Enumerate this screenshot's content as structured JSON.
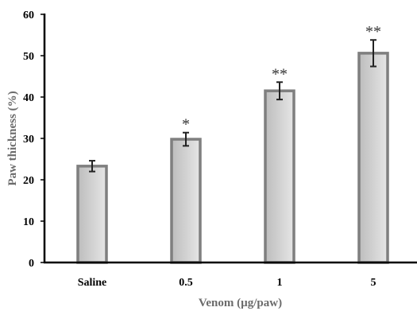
{
  "chart_data": {
    "type": "bar",
    "categories": [
      "Saline",
      "0.5",
      "1",
      "5"
    ],
    "values": [
      23.3,
      29.8,
      41.5,
      50.6
    ],
    "errors": [
      1.3,
      1.6,
      2.1,
      3.2
    ],
    "significance": [
      "",
      "*",
      "**",
      "**"
    ],
    "xlabel": "Venom (µg/paw)",
    "ylabel": "Paw thickness (%)",
    "ylim": [
      0,
      60
    ],
    "yticks": [
      0,
      10,
      20,
      30,
      40,
      50,
      60
    ],
    "grid": false,
    "legend": "none"
  },
  "colors": {
    "bar_fill_light": "#e6e6e6",
    "bar_fill_dark": "#bdbdbd",
    "bar_stroke": "#7f7f7f",
    "axis": "#000000",
    "axis_title": "#6b6b6b"
  }
}
